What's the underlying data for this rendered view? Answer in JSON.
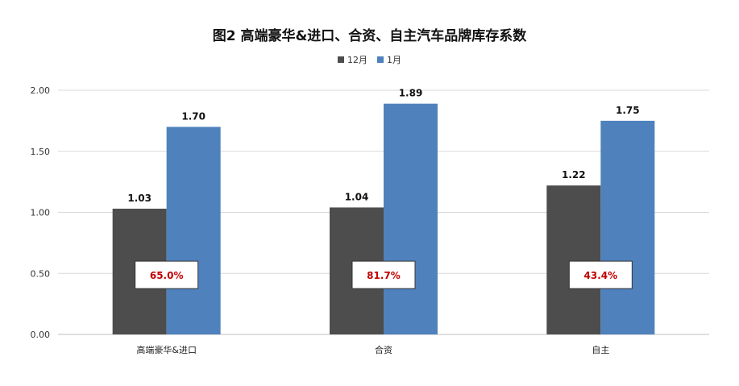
{
  "chart_data": {
    "type": "bar",
    "title": "图2  高端豪华&进口、合资、自主汽车品牌库存系数",
    "categories": [
      "高端豪华&进口",
      "合资",
      "自主"
    ],
    "series": [
      {
        "name": "12月",
        "color": "#4d4d4d",
        "values": [
          1.03,
          1.04,
          1.22
        ]
      },
      {
        "name": "1月",
        "color": "#4f81bd",
        "values": [
          1.7,
          1.89,
          1.75
        ]
      }
    ],
    "ylim": [
      0,
      2
    ],
    "yticks": [
      "0.00",
      "0.50",
      "1.00",
      "1.50",
      "2.00"
    ],
    "data_labels": [
      [
        "1.03",
        "1.04",
        "1.22"
      ],
      [
        "1.70",
        "1.89",
        "1.75"
      ]
    ],
    "annotations": [
      "65.0%",
      "81.7%",
      "43.4%"
    ],
    "annotation_color": "#c00000",
    "grid": true,
    "legend_position": "top"
  }
}
